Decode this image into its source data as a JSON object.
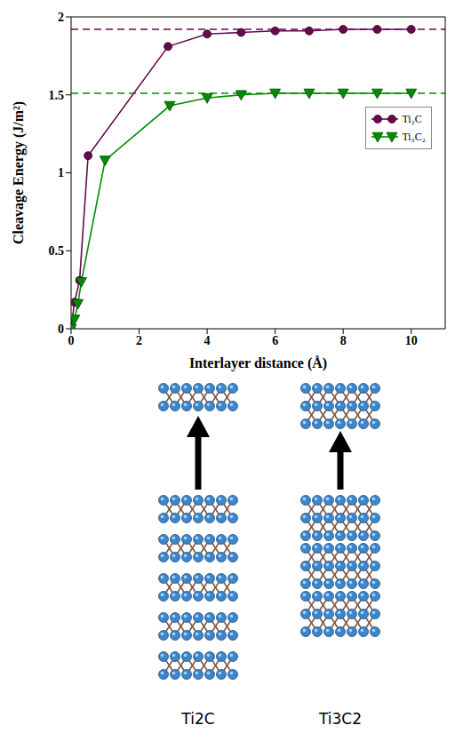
{
  "chart_data": {
    "type": "line",
    "xlabel": "Interlayer distance (Å)",
    "ylabel": "Cleavage Energy (J/m²)",
    "xlim": [
      0,
      11
    ],
    "xticks": [
      0,
      2,
      4,
      6,
      8,
      10
    ],
    "ylim": [
      0,
      2
    ],
    "yticks": [
      0,
      0.5,
      1,
      1.5,
      2
    ],
    "legend": "right",
    "grid": false,
    "series": [
      {
        "name": "Ti₂C",
        "color": "#660a4c",
        "marker": "circle",
        "line_style": "solid",
        "x": [
          0,
          0.1,
          0.25,
          0.5,
          2.85,
          4,
          5,
          6,
          7,
          8,
          9,
          10
        ],
        "values": [
          0,
          0.17,
          0.31,
          1.11,
          1.81,
          1.89,
          1.9,
          1.91,
          1.91,
          1.92,
          1.92,
          1.92
        ],
        "asymptote": 1.92
      },
      {
        "name": "Ti₃C₂",
        "color": "#008c00",
        "marker": "triangle-down",
        "line_style": "solid",
        "x": [
          0,
          0.1,
          0.2,
          0.3,
          1,
          2.9,
          4,
          5,
          6,
          7,
          8,
          9,
          10
        ],
        "values": [
          0,
          0.06,
          0.16,
          0.3,
          1.08,
          1.43,
          1.48,
          1.5,
          1.51,
          1.51,
          1.51,
          1.51,
          1.51
        ],
        "asymptote": 1.51
      }
    ]
  },
  "diagram": {
    "panels": [
      {
        "label": "Ti2C"
      },
      {
        "label": "Ti3C2"
      }
    ]
  }
}
